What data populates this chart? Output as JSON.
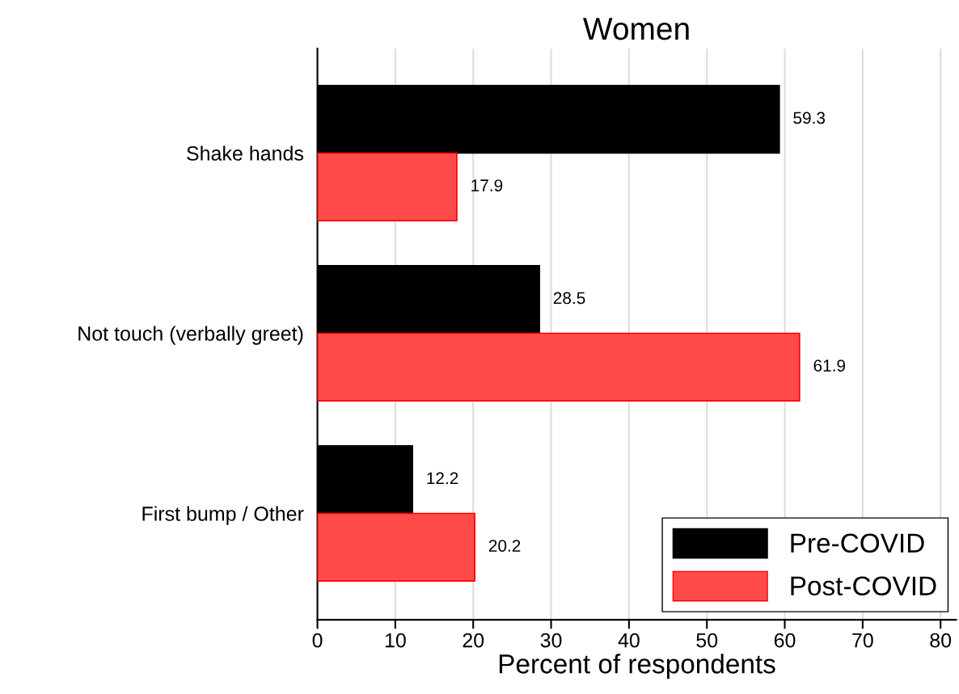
{
  "chart_data": {
    "type": "bar",
    "orientation": "horizontal",
    "title": "Women",
    "xlabel": "Percent of respondents",
    "categories": [
      "Shake hands",
      "Not touch (verbally greet)",
      "First bump / Other"
    ],
    "series": [
      {
        "name": "Pre-COVID",
        "color": "#000000",
        "values": [
          59.3,
          28.5,
          12.2
        ]
      },
      {
        "name": "Post-COVID",
        "color": "#ff4a4a",
        "values": [
          17.9,
          61.9,
          20.2
        ]
      }
    ],
    "xlim": [
      0,
      82
    ],
    "xticks": [
      0,
      10,
      20,
      30,
      40,
      50,
      60,
      70,
      80
    ],
    "grid": "x",
    "legend": "bottom right",
    "data_labels": true
  }
}
